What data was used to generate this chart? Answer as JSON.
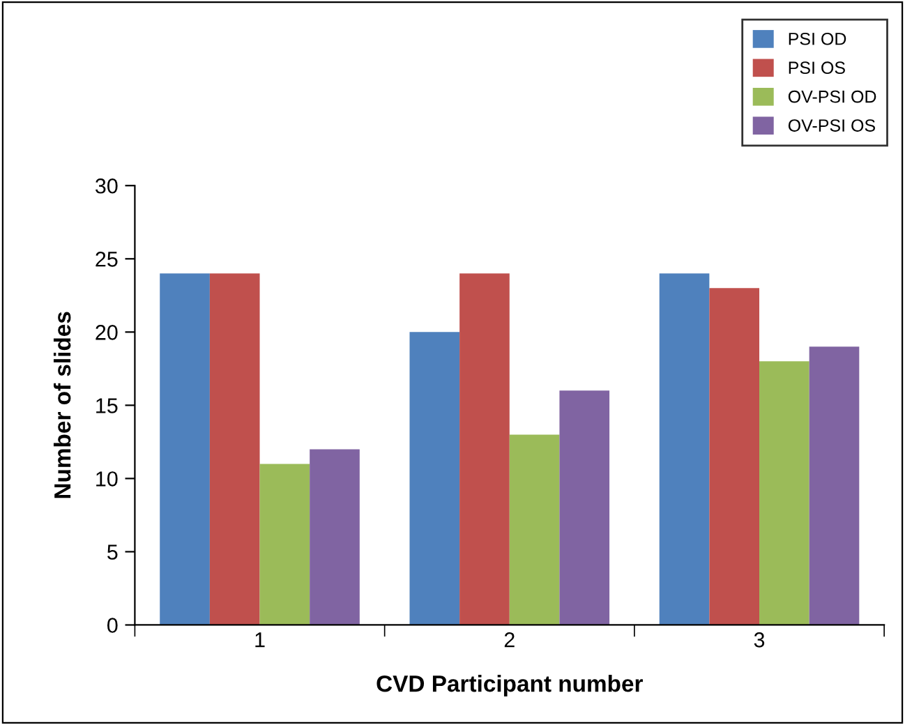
{
  "chart_data": {
    "type": "bar",
    "xlabel": "CVD Participant number",
    "ylabel": "Number of slides",
    "categories": [
      "1",
      "2",
      "3"
    ],
    "series": [
      {
        "name": "PSI OD",
        "color": "#4f81bd",
        "values": [
          24,
          20,
          24
        ]
      },
      {
        "name": "PSI OS",
        "color": "#c0504d",
        "values": [
          24,
          24,
          23
        ]
      },
      {
        "name": "OV-PSI OD",
        "color": "#9bbb59",
        "values": [
          11,
          13,
          18
        ]
      },
      {
        "name": "OV-PSI OS",
        "color": "#8064a2",
        "values": [
          12,
          16,
          19
        ]
      }
    ],
    "ylim": [
      0,
      30
    ],
    "yticks": [
      0,
      5,
      10,
      15,
      20,
      25,
      30
    ],
    "grid": false,
    "legend": "top right"
  }
}
